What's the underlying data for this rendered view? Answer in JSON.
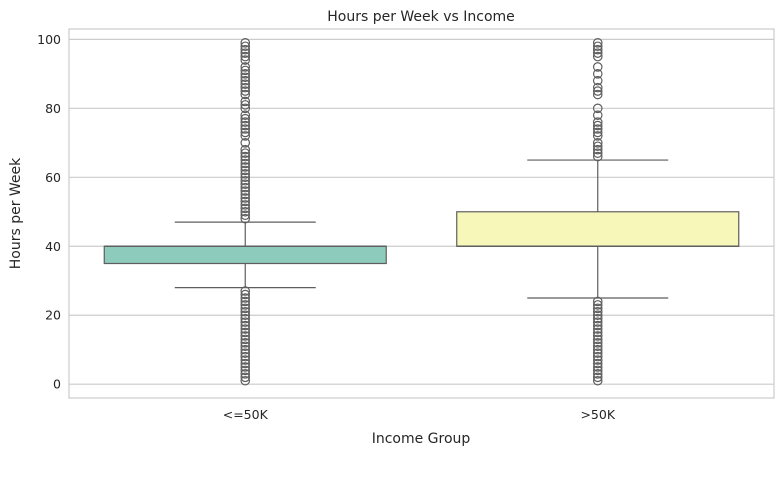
{
  "chart_data": {
    "type": "box",
    "title": "Hours per Week vs Income",
    "xlabel": "Income Group",
    "ylabel": "Hours per Week",
    "ylim": [
      -4,
      103
    ],
    "yticks": [
      0,
      20,
      40,
      60,
      80,
      100
    ],
    "grid": true,
    "categories": [
      "<=50K",
      ">50K"
    ],
    "boxes": [
      {
        "category": "<=50K",
        "color": "#8dcbbd",
        "whisker_low": 28,
        "q1": 35,
        "median": 40,
        "q3": 40,
        "whisker_high": 47,
        "outliers": [
          1,
          2,
          3,
          4,
          5,
          6,
          7,
          8,
          9,
          10,
          11,
          12,
          13,
          14,
          15,
          16,
          17,
          18,
          19,
          20,
          21,
          22,
          23,
          24,
          25,
          26,
          27,
          48,
          49,
          50,
          51,
          52,
          53,
          54,
          55,
          56,
          57,
          58,
          59,
          60,
          61,
          62,
          63,
          64,
          65,
          66,
          67,
          68,
          70,
          72,
          73,
          74,
          75,
          76,
          77,
          78,
          80,
          81,
          82,
          84,
          85,
          86,
          87,
          88,
          89,
          90,
          91,
          92,
          94,
          95,
          96,
          97,
          98,
          99
        ]
      },
      {
        "category": ">50K",
        "color": "#f7f7b9",
        "whisker_low": 25,
        "q1": 40,
        "median": 40,
        "q3": 50,
        "whisker_high": 65,
        "outliers": [
          1,
          2,
          3,
          4,
          5,
          6,
          7,
          8,
          9,
          10,
          11,
          12,
          13,
          14,
          15,
          16,
          17,
          18,
          19,
          20,
          21,
          22,
          23,
          24,
          66,
          67,
          68,
          69,
          70,
          72,
          73,
          74,
          75,
          76,
          78,
          80,
          84,
          85,
          86,
          88,
          90,
          92,
          95,
          96,
          97,
          98,
          99
        ]
      }
    ]
  }
}
